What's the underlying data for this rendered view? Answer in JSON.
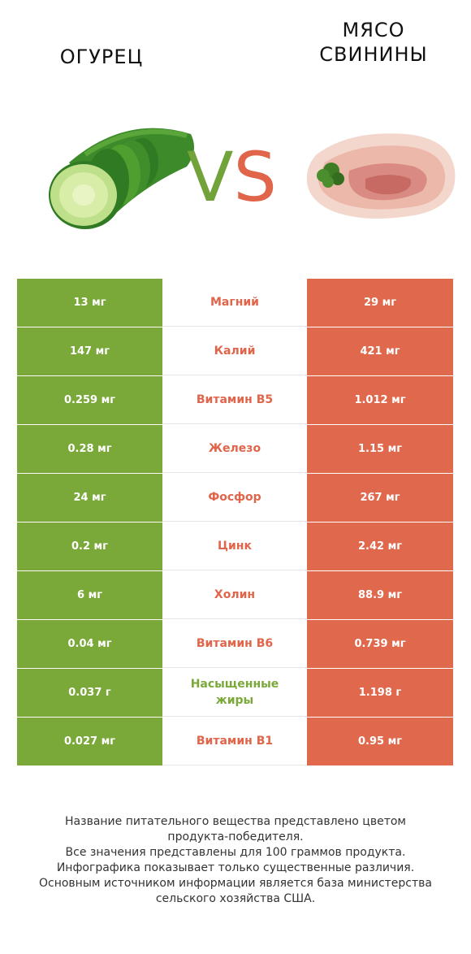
{
  "header": {
    "left_title": "ОГУРЕЦ",
    "right_title_line1": "МЯСО",
    "right_title_line2": "СВИНИНЫ",
    "vs_v": "V",
    "vs_s": "S"
  },
  "colors": {
    "left": "#7aa93a",
    "right": "#e0694d",
    "left_text": "#7aa93a",
    "right_text": "#e0654a"
  },
  "icons": {
    "left_image": "cucumber-image",
    "right_image": "pork-meat-image"
  },
  "chart_data": {
    "type": "table",
    "columns": [
      "ОГУРЕЦ",
      "",
      "МЯСО СВИНИНЫ"
    ],
    "rows": [
      {
        "left": "13 мг",
        "nutrient": "Магний",
        "right": "29 мг",
        "winner": "right"
      },
      {
        "left": "147 мг",
        "nutrient": "Калий",
        "right": "421 мг",
        "winner": "right"
      },
      {
        "left": "0.259 мг",
        "nutrient": "Витамин B5",
        "right": "1.012 мг",
        "winner": "right"
      },
      {
        "left": "0.28 мг",
        "nutrient": "Железо",
        "right": "1.15 мг",
        "winner": "right"
      },
      {
        "left": "24 мг",
        "nutrient": "Фосфор",
        "right": "267 мг",
        "winner": "right"
      },
      {
        "left": "0.2 мг",
        "nutrient": "Цинк",
        "right": "2.42 мг",
        "winner": "right"
      },
      {
        "left": "6 мг",
        "nutrient": "Холин",
        "right": "88.9 мг",
        "winner": "right"
      },
      {
        "left": "0.04 мг",
        "nutrient": "Витамин B6",
        "right": "0.739 мг",
        "winner": "right"
      },
      {
        "left": "0.037 г",
        "nutrient": "Насыщенные жиры",
        "right": "1.198 г",
        "winner": "left"
      },
      {
        "left": "0.027 мг",
        "nutrient": "Витамин B1",
        "right": "0.95 мг",
        "winner": "right"
      }
    ]
  },
  "footer": {
    "line1": "Название питательного вещества представлено цветом",
    "line2": "продукта-победителя.",
    "line3": "Все значения представлены для 100 граммов продукта.",
    "line4": "Инфографика показывает только существенные различия.",
    "line5": "Основным источником информации является база министерства",
    "line6": "сельского хозяйства США."
  }
}
